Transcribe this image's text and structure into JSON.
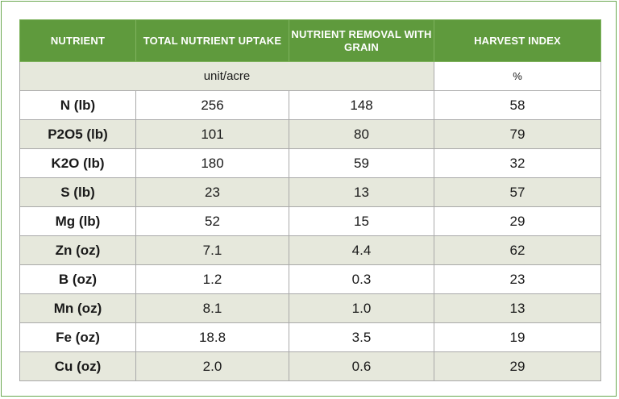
{
  "table": {
    "headers": [
      "NUTRIENT",
      "TOTAL NUTRIENT UPTAKE",
      "NUTRIENT REMOVAL WITH GRAIN",
      "HARVEST INDEX"
    ],
    "unit_label": "unit/acre",
    "percent_label": "%",
    "rows": [
      [
        "N (lb)",
        "256",
        "148",
        "58"
      ],
      [
        "P2O5 (lb)",
        "101",
        "80",
        "79"
      ],
      [
        "K2O (lb)",
        "180",
        "59",
        "32"
      ],
      [
        "S (lb)",
        "23",
        "13",
        "57"
      ],
      [
        "Mg (lb)",
        "52",
        "15",
        "29"
      ],
      [
        "Zn (oz)",
        "7.1",
        "4.4",
        "62"
      ],
      [
        "B (oz)",
        "1.2",
        "0.3",
        "23"
      ],
      [
        "Mn (oz)",
        "8.1",
        "1.0",
        "13"
      ],
      [
        "Fe (oz)",
        "18.8",
        "3.5",
        "19"
      ],
      [
        "Cu (oz)",
        "2.0",
        "0.6",
        "29"
      ]
    ]
  },
  "colors": {
    "header_bg": "#5f9a3d",
    "stripe_bg": "#e6e8dc",
    "frame_border": "#6aa84f"
  }
}
